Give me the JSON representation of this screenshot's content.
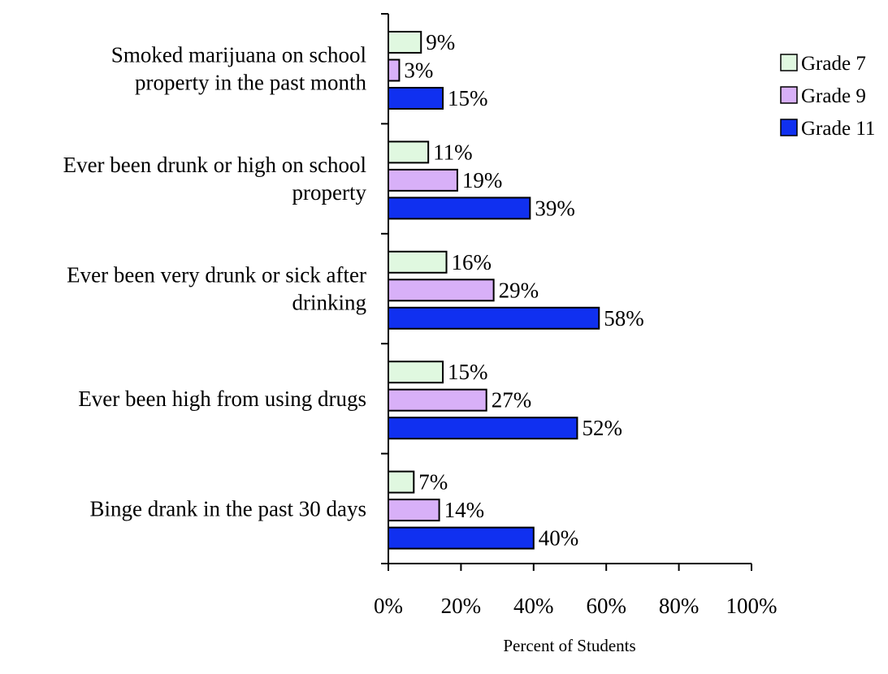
{
  "chart_data": {
    "type": "bar",
    "orientation": "horizontal",
    "categories": [
      [
        "Smoked marijuana on school",
        "property in the past month"
      ],
      [
        "Ever been drunk or high on school",
        "property"
      ],
      [
        "Ever been very drunk or sick after",
        "drinking"
      ],
      [
        "Ever been high from using drugs"
      ],
      [
        "Binge drank in the past 30 days"
      ]
    ],
    "series": [
      {
        "name": "Grade 7",
        "color": "#e0f8e0",
        "values": [
          9,
          11,
          16,
          15,
          7
        ],
        "labels": [
          "9%",
          "11%",
          "16%",
          "15%",
          "7%"
        ]
      },
      {
        "name": "Grade 9",
        "color": "#d8b0f8",
        "values": [
          3,
          19,
          29,
          27,
          14
        ],
        "labels": [
          "3%",
          "19%",
          "29%",
          "27%",
          "14%"
        ]
      },
      {
        "name": "Grade 11",
        "color": "#1030f0",
        "values": [
          15,
          39,
          58,
          52,
          40
        ],
        "labels": [
          "15%",
          "39%",
          "58%",
          "52%",
          "40%"
        ]
      }
    ],
    "x_ticks": [
      "0%",
      "20%",
      "40%",
      "60%",
      "80%",
      "100%"
    ],
    "xlim": [
      0,
      100
    ],
    "xlabel": "Percent of Students",
    "legend_position": "top-right",
    "grid": false
  }
}
